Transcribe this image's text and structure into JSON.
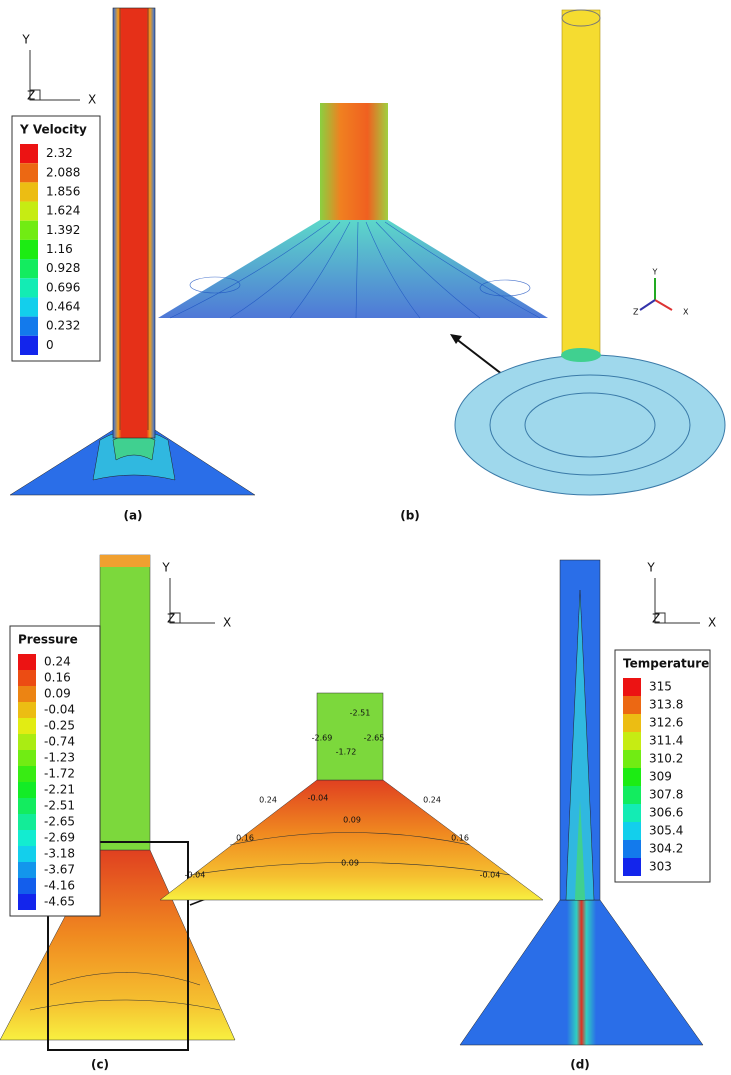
{
  "panels": [
    {
      "label": "(a)",
      "axes": {
        "y": "Y",
        "x": "X",
        "z": "Z"
      },
      "legend": {
        "title": "Y Velocity",
        "entries": [
          2.32,
          2.088,
          1.856,
          1.624,
          1.392,
          1.16,
          0.928,
          0.696,
          0.464,
          0.232,
          0
        ]
      }
    },
    {
      "label": "(b)",
      "axes": {
        "y": "Y",
        "x": "X",
        "z": "Z"
      }
    },
    {
      "label": "(c)",
      "axes": {
        "y": "Y",
        "x": "X",
        "z": "Z"
      },
      "legend": {
        "title": "Pressure",
        "entries": [
          0.24,
          0.16,
          0.09,
          -0.04,
          -0.25,
          -0.74,
          -1.23,
          -1.72,
          -2.21,
          -2.51,
          -2.65,
          -2.69,
          -3.18,
          -3.67,
          -4.16,
          -4.65
        ]
      },
      "contour_labels": [
        "-2.51",
        "-2.69",
        "-2.65",
        "-1.72",
        "0.24",
        "0.24",
        "-0.04",
        "0.09",
        "0.16",
        "0.16",
        "0.09",
        "-0.04",
        "-0.04"
      ]
    },
    {
      "label": "(d)",
      "axes": {
        "y": "Y",
        "x": "X",
        "z": "Z"
      },
      "legend": {
        "title": "Temperature",
        "entries": [
          315,
          313.8,
          312.6,
          311.4,
          310.2,
          309,
          307.8,
          306.6,
          305.4,
          304.2,
          303
        ]
      }
    }
  ]
}
